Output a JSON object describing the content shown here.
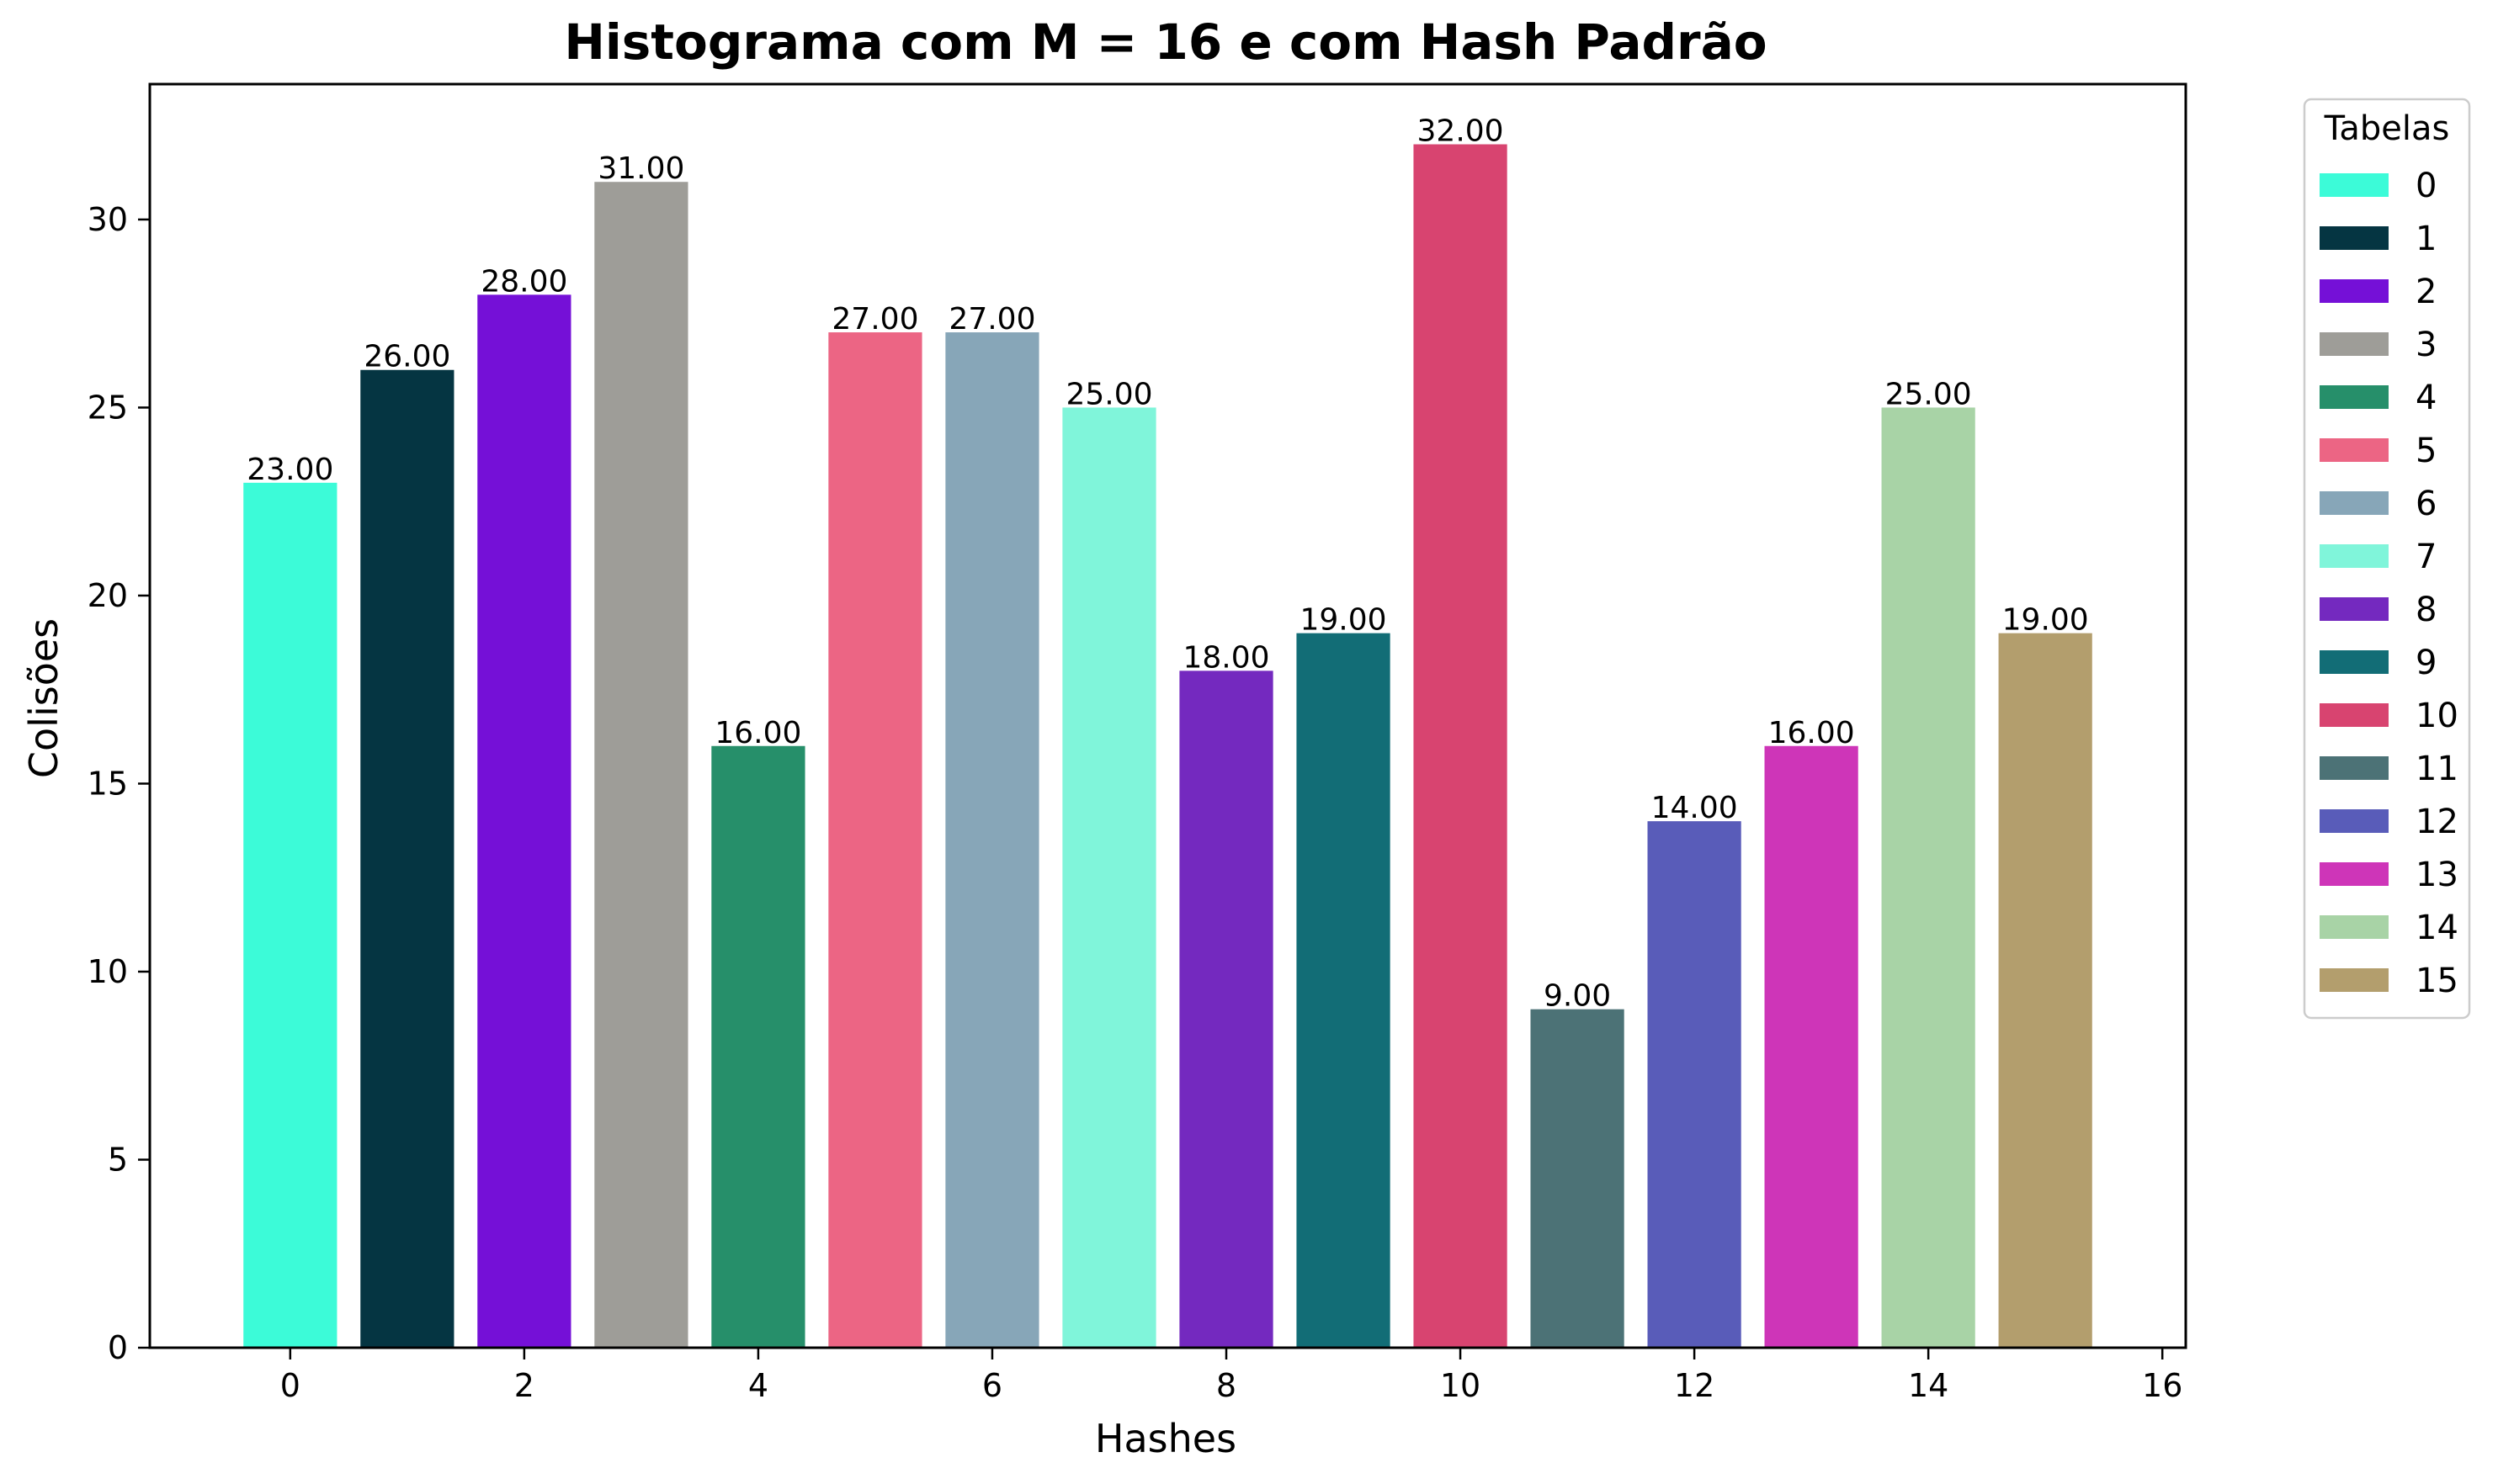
{
  "chart_data": {
    "type": "bar",
    "title": "Histograma com M = 16 e com Hash Padrão",
    "xlabel": "Hashes",
    "ylabel": "Colisões",
    "xlim": [
      -1.2,
      16.2
    ],
    "ylim": [
      0,
      33.6
    ],
    "xticks": [
      0,
      2,
      4,
      6,
      8,
      10,
      12,
      14,
      16
    ],
    "yticks": [
      0,
      5,
      10,
      15,
      20,
      25,
      30
    ],
    "grid": false,
    "legend": {
      "title": "Tabelas",
      "placement": "outside-top-right"
    },
    "bars": [
      {
        "x": 0,
        "value": 23,
        "label": "23.00",
        "legend": "0",
        "color": "#3cfbd8"
      },
      {
        "x": 1,
        "value": 26,
        "label": "26.00",
        "legend": "1",
        "color": "#053542"
      },
      {
        "x": 2,
        "value": 28,
        "label": "28.00",
        "legend": "2",
        "color": "#7510d7"
      },
      {
        "x": 3,
        "value": 31,
        "label": "31.00",
        "legend": "3",
        "color": "#9e9d98"
      },
      {
        "x": 4,
        "value": 16,
        "label": "16.00",
        "legend": "4",
        "color": "#268f6a"
      },
      {
        "x": 5,
        "value": 27,
        "label": "27.00",
        "legend": "5",
        "color": "#ec6584"
      },
      {
        "x": 6,
        "value": 27,
        "label": "27.00",
        "legend": "6",
        "color": "#87a6b8"
      },
      {
        "x": 7,
        "value": 25,
        "label": "25.00",
        "legend": "7",
        "color": "#80f5da"
      },
      {
        "x": 8,
        "value": 18,
        "label": "18.00",
        "legend": "8",
        "color": "#7429bf"
      },
      {
        "x": 9,
        "value": 19,
        "label": "19.00",
        "legend": "9",
        "color": "#126d76"
      },
      {
        "x": 10,
        "value": 32,
        "label": "32.00",
        "legend": "10",
        "color": "#d84470"
      },
      {
        "x": 11,
        "value": 9,
        "label": "9.00",
        "legend": "11",
        "color": "#4c7276"
      },
      {
        "x": 12,
        "value": 14,
        "label": "14.00",
        "legend": "12",
        "color": "#595cb9"
      },
      {
        "x": 13,
        "value": 16,
        "label": "16.00",
        "legend": "13",
        "color": "#ce35b8"
      },
      {
        "x": 14,
        "value": 25,
        "label": "25.00",
        "legend": "14",
        "color": "#a8d3a6"
      },
      {
        "x": 15,
        "value": 19,
        "label": "19.00",
        "legend": "15",
        "color": "#b39e6d"
      }
    ]
  }
}
